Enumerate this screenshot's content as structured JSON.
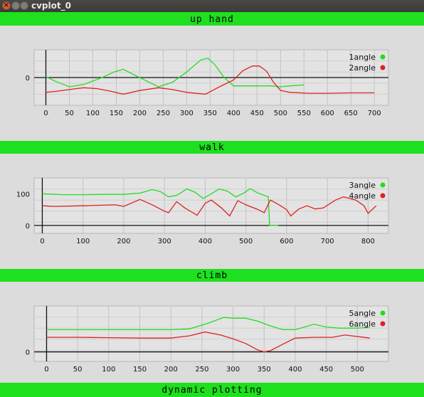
{
  "window": {
    "title": "cvplot_0"
  },
  "plots": [
    {
      "title": "up hand",
      "xticks": [
        "0",
        "50",
        "100",
        "150",
        "200",
        "250",
        "300",
        "350",
        "400",
        "450",
        "500",
        "550",
        "600",
        "650",
        "700"
      ],
      "yticks": [
        {
          "label": "0",
          "v": 0
        }
      ],
      "legend": [
        {
          "label": "1angle",
          "color": "#22dd22"
        },
        {
          "label": "2angle",
          "color": "#dd2222"
        }
      ]
    },
    {
      "title": "walk",
      "xticks": [
        "0",
        "100",
        "200",
        "300",
        "400",
        "500",
        "600",
        "700",
        "800"
      ],
      "yticks": [
        {
          "label": "100",
          "v": 100
        },
        {
          "label": "0",
          "v": 0
        }
      ],
      "legend": [
        {
          "label": "3angle",
          "color": "#22dd22"
        },
        {
          "label": "4angle",
          "color": "#dd2222"
        }
      ]
    },
    {
      "title": "climb",
      "xticks": [
        "0",
        "50",
        "100",
        "150",
        "200",
        "250",
        "300",
        "350",
        "400",
        "450",
        "500"
      ],
      "yticks": [
        {
          "label": "0",
          "v": 0
        }
      ],
      "legend": [
        {
          "label": "5angle",
          "color": "#22dd22"
        },
        {
          "label": "6angle",
          "color": "#dd2222"
        }
      ]
    },
    {
      "title": "dynamic plotting"
    }
  ],
  "chart_data": [
    {
      "type": "line",
      "title": "up hand",
      "xlim": [
        -25,
        730
      ],
      "ylim": [
        -60,
        60
      ],
      "grid": true,
      "legend_position": "top-right",
      "series": [
        {
          "name": "1angle",
          "color": "#22dd22",
          "points": [
            [
              0,
              2
            ],
            [
              20,
              -8
            ],
            [
              50,
              -20
            ],
            [
              80,
              -15
            ],
            [
              120,
              0
            ],
            [
              145,
              12
            ],
            [
              165,
              18
            ],
            [
              180,
              10
            ],
            [
              210,
              -5
            ],
            [
              240,
              -20
            ],
            [
              270,
              -10
            ],
            [
              300,
              12
            ],
            [
              330,
              38
            ],
            [
              345,
              42
            ],
            [
              360,
              28
            ],
            [
              380,
              0
            ],
            [
              400,
              -18
            ],
            [
              420,
              -18
            ],
            [
              450,
              -18
            ],
            [
              480,
              -18
            ],
            [
              500,
              -20
            ],
            [
              520,
              -18
            ],
            [
              550,
              -16
            ]
          ]
        },
        {
          "name": "2angle",
          "color": "#dd2222",
          "points": [
            [
              0,
              -32
            ],
            [
              20,
              -30
            ],
            [
              50,
              -26
            ],
            [
              80,
              -22
            ],
            [
              110,
              -24
            ],
            [
              140,
              -30
            ],
            [
              165,
              -36
            ],
            [
              200,
              -28
            ],
            [
              240,
              -22
            ],
            [
              270,
              -26
            ],
            [
              300,
              -32
            ],
            [
              340,
              -36
            ],
            [
              370,
              -20
            ],
            [
              400,
              -5
            ],
            [
              420,
              15
            ],
            [
              440,
              25
            ],
            [
              455,
              25
            ],
            [
              470,
              14
            ],
            [
              485,
              -10
            ],
            [
              500,
              -28
            ],
            [
              520,
              -32
            ],
            [
              560,
              -34
            ],
            [
              600,
              -34
            ],
            [
              650,
              -33
            ],
            [
              700,
              -33
            ]
          ]
        }
      ]
    },
    {
      "type": "line",
      "title": "walk",
      "xlim": [
        -20,
        850
      ],
      "ylim": [
        -25,
        150
      ],
      "grid": true,
      "legend_position": "top-right",
      "series": [
        {
          "name": "3angle",
          "color": "#22dd22",
          "points": [
            [
              0,
              100
            ],
            [
              50,
              97
            ],
            [
              100,
              97
            ],
            [
              150,
              98
            ],
            [
              200,
              98
            ],
            [
              240,
              102
            ],
            [
              270,
              113
            ],
            [
              290,
              107
            ],
            [
              310,
              90
            ],
            [
              330,
              95
            ],
            [
              355,
              115
            ],
            [
              375,
              105
            ],
            [
              395,
              85
            ],
            [
              415,
              100
            ],
            [
              435,
              115
            ],
            [
              455,
              108
            ],
            [
              475,
              90
            ],
            [
              495,
              102
            ],
            [
              510,
              116
            ],
            [
              530,
              102
            ],
            [
              555,
              90
            ],
            [
              558,
              0
            ],
            [
              580,
              0
            ]
          ]
        },
        {
          "name": "4angle",
          "color": "#dd2222",
          "points": [
            [
              0,
              62
            ],
            [
              30,
              60
            ],
            [
              100,
              62
            ],
            [
              180,
              65
            ],
            [
              200,
              60
            ],
            [
              240,
              82
            ],
            [
              270,
              65
            ],
            [
              300,
              45
            ],
            [
              310,
              40
            ],
            [
              330,
              75
            ],
            [
              350,
              55
            ],
            [
              370,
              40
            ],
            [
              380,
              32
            ],
            [
              400,
              70
            ],
            [
              415,
              80
            ],
            [
              440,
              55
            ],
            [
              460,
              30
            ],
            [
              480,
              78
            ],
            [
              500,
              65
            ],
            [
              530,
              50
            ],
            [
              545,
              40
            ],
            [
              560,
              80
            ],
            [
              575,
              70
            ],
            [
              600,
              50
            ],
            [
              610,
              30
            ],
            [
              630,
              52
            ],
            [
              650,
              62
            ],
            [
              670,
              52
            ],
            [
              690,
              55
            ],
            [
              720,
              80
            ],
            [
              740,
              90
            ],
            [
              770,
              80
            ],
            [
              790,
              62
            ],
            [
              800,
              38
            ],
            [
              820,
              62
            ]
          ]
        }
      ]
    },
    {
      "type": "line",
      "title": "climb",
      "xlim": [
        -20,
        550
      ],
      "ylim": [
        -25,
        120
      ],
      "grid": true,
      "legend_position": "top-right",
      "series": [
        {
          "name": "5angle",
          "color": "#22dd22",
          "points": [
            [
              0,
              58
            ],
            [
              50,
              58
            ],
            [
              100,
              58
            ],
            [
              150,
              58
            ],
            [
              200,
              58
            ],
            [
              230,
              60
            ],
            [
              260,
              75
            ],
            [
              285,
              90
            ],
            [
              300,
              88
            ],
            [
              320,
              88
            ],
            [
              340,
              80
            ],
            [
              360,
              68
            ],
            [
              380,
              58
            ],
            [
              400,
              58
            ],
            [
              415,
              65
            ],
            [
              430,
              72
            ],
            [
              450,
              65
            ],
            [
              470,
              62
            ],
            [
              500,
              62
            ],
            [
              520,
              64
            ]
          ]
        },
        {
          "name": "6angle",
          "color": "#dd2222",
          "points": [
            [
              0,
              38
            ],
            [
              50,
              38
            ],
            [
              100,
              37
            ],
            [
              150,
              36
            ],
            [
              200,
              36
            ],
            [
              230,
              42
            ],
            [
              255,
              52
            ],
            [
              280,
              44
            ],
            [
              300,
              34
            ],
            [
              320,
              22
            ],
            [
              340,
              5
            ],
            [
              350,
              0
            ],
            [
              360,
              3
            ],
            [
              380,
              20
            ],
            [
              400,
              36
            ],
            [
              430,
              38
            ],
            [
              460,
              38
            ],
            [
              480,
              44
            ],
            [
              500,
              40
            ],
            [
              520,
              36
            ]
          ]
        }
      ]
    }
  ]
}
